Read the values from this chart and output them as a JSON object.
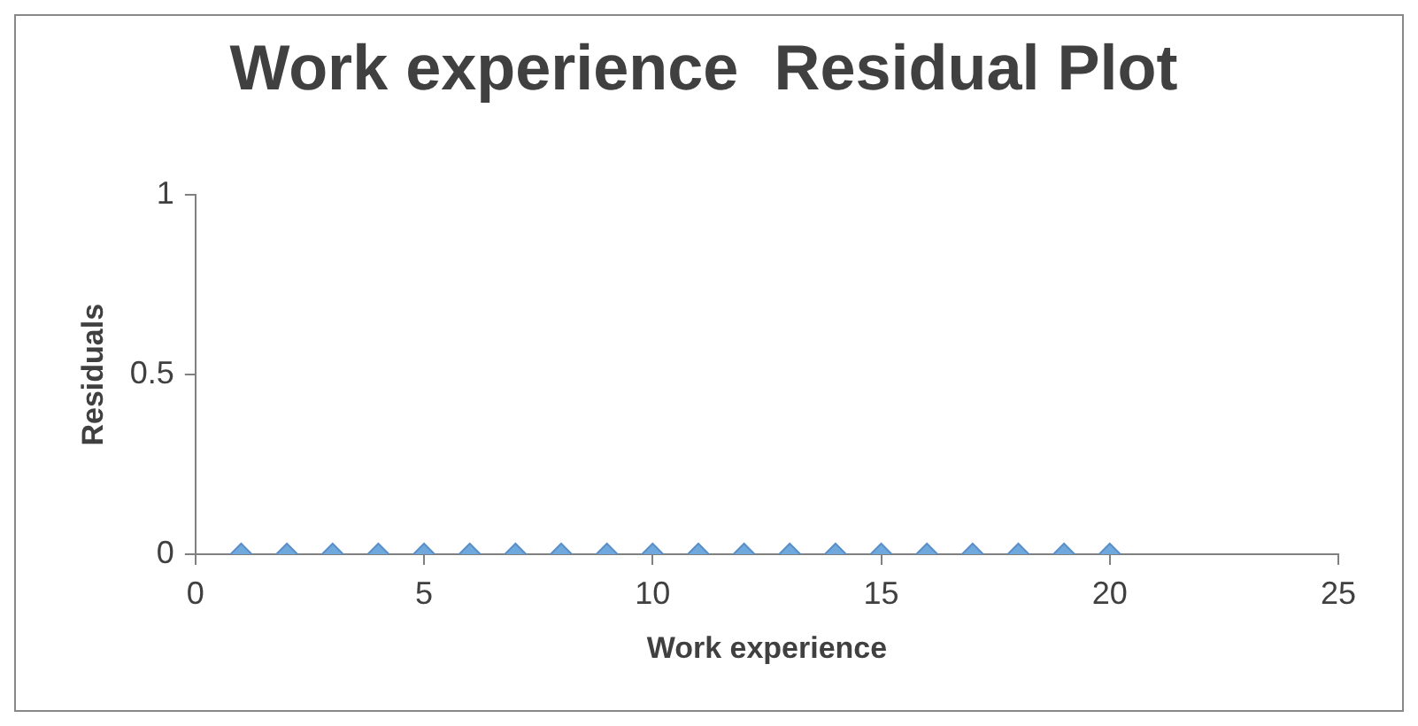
{
  "chart_data": {
    "type": "scatter",
    "title": "Work experience  Residual Plot",
    "xlabel": "Work experience",
    "ylabel": "Residuals",
    "marker": "diamond",
    "grid": false,
    "x": [
      1,
      2,
      3,
      4,
      5,
      6,
      7,
      8,
      9,
      10,
      11,
      12,
      13,
      14,
      15,
      16,
      17,
      18,
      19,
      20
    ],
    "series": [
      {
        "color": "#6fa8dc",
        "values": [
          0,
          0,
          0,
          0,
          0,
          0,
          0,
          0,
          0,
          0,
          0,
          0,
          0,
          0,
          0,
          0,
          0,
          0,
          0,
          0
        ]
      }
    ],
    "xlim": [
      0,
      25
    ],
    "xticks": [
      0,
      5,
      10,
      15,
      20,
      25
    ],
    "ylim": [
      0,
      1
    ],
    "yticks": [
      0,
      0.5,
      1
    ]
  }
}
